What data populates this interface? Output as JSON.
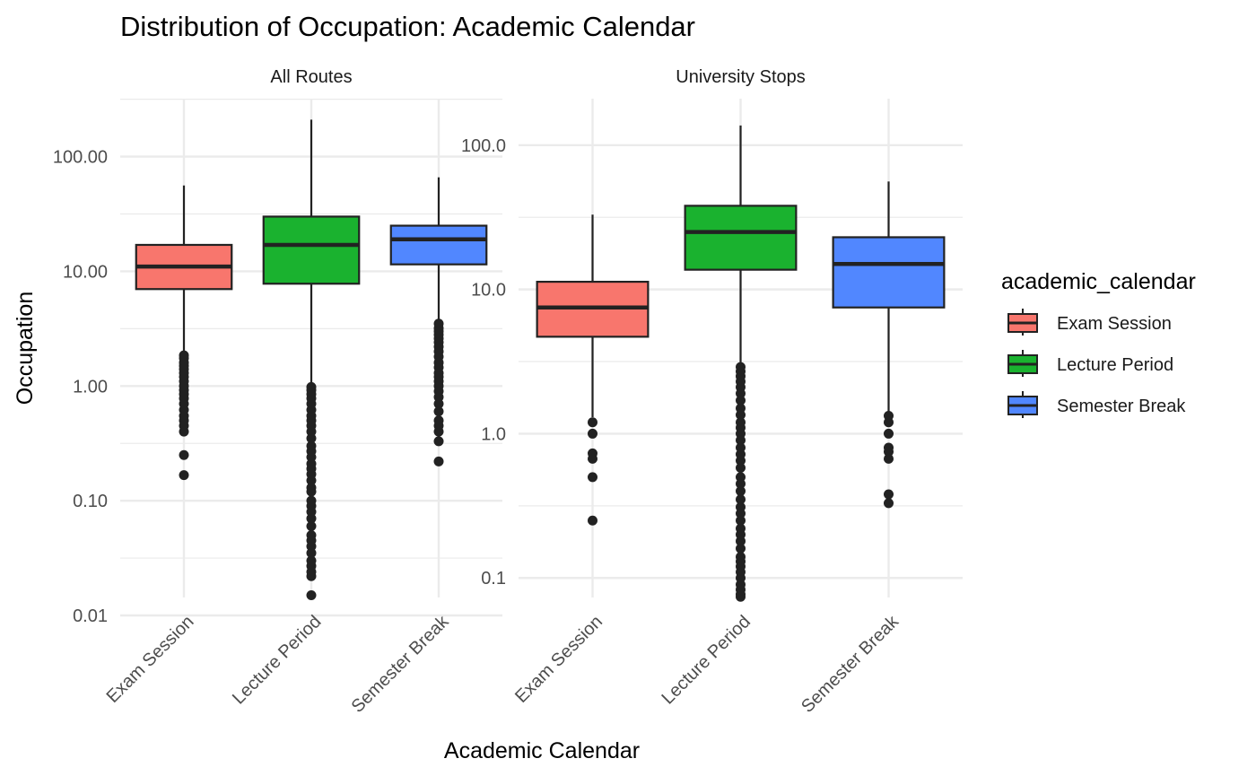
{
  "chart_data": {
    "type": "box",
    "title": "Distribution of Occupation: Academic Calendar",
    "xlabel": "Academic Calendar",
    "ylabel": "Occupation",
    "yscale": "log10",
    "grid": true,
    "categories": [
      "Exam Session",
      "Lecture Period",
      "Semester Break"
    ],
    "legend": {
      "title": "academic_calendar",
      "position": "right",
      "entries": [
        {
          "label": "Exam Session",
          "color": "#F8766D"
        },
        {
          "label": "Lecture Period",
          "color": "#1AB22F"
        },
        {
          "label": "Semester Break",
          "color": "#5187FF"
        }
      ]
    },
    "panels": [
      {
        "strip": "All Routes",
        "ylim": [
          0.01,
          320
        ],
        "ytick_values": [
          0.01,
          0.1,
          1,
          10,
          100
        ],
        "ytick_labels": [
          "0.01",
          "0.10",
          "1.00",
          "10.00",
          "100.00"
        ],
        "boxes": [
          {
            "category": "Exam Session",
            "whisker_low": 2.0,
            "q1": 7.0,
            "median": 11.0,
            "q3": 17.0,
            "whisker_high": 56,
            "outliers": [
              1.85,
              1.75,
              1.6,
              1.5,
              1.4,
              1.3,
              1.2,
              1.1,
              1.0,
              0.92,
              0.85,
              0.78,
              0.7,
              0.62,
              0.55,
              0.5,
              0.45,
              0.4,
              0.25,
              0.167
            ]
          },
          {
            "category": "Lecture Period",
            "whisker_low": 1.0,
            "q1": 7.8,
            "median": 17.0,
            "q3": 30.0,
            "whisker_high": 210,
            "outliers": [
              0.98,
              0.92,
              0.85,
              0.78,
              0.7,
              0.62,
              0.55,
              0.5,
              0.45,
              0.4,
              0.35,
              0.3,
              0.27,
              0.24,
              0.21,
              0.19,
              0.17,
              0.15,
              0.13,
              0.12,
              0.1,
              0.09,
              0.08,
              0.07,
              0.06,
              0.05,
              0.045,
              0.04,
              0.035,
              0.03,
              0.027,
              0.024,
              0.022,
              0.015
            ]
          },
          {
            "category": "Semester Break",
            "whisker_low": 3.6,
            "q1": 11.5,
            "median": 19.0,
            "q3": 25.0,
            "whisker_high": 66,
            "outliers": [
              3.5,
              3.2,
              3.0,
              2.8,
              2.6,
              2.4,
              2.2,
              2.0,
              1.8,
              1.6,
              1.45,
              1.3,
              1.2,
              1.1,
              1.0,
              0.9,
              0.8,
              0.7,
              0.6,
              0.5,
              0.45,
              0.4,
              0.33,
              0.22
            ]
          }
        ]
      },
      {
        "strip": "University Stops",
        "ylim": [
          0.055,
          210
        ],
        "ytick_values": [
          0.1,
          1,
          10,
          100
        ],
        "ytick_labels": [
          "0.1",
          "1.0",
          "10.0",
          "100.0"
        ],
        "boxes": [
          {
            "category": "Exam Session",
            "whisker_low": 1.3,
            "q1": 4.7,
            "median": 7.5,
            "q3": 11.3,
            "whisker_high": 33,
            "outliers": [
              1.2,
              1.0,
              0.73,
              0.67,
              0.5,
              0.25
            ]
          },
          {
            "category": "Lecture Period",
            "whisker_low": 3.0,
            "q1": 13.7,
            "median": 25.0,
            "q3": 38.0,
            "whisker_high": 137,
            "outliers": [
              2.9,
              2.7,
              2.5,
              2.3,
              2.1,
              1.9,
              1.7,
              1.5,
              1.35,
              1.2,
              1.1,
              1.0,
              0.9,
              0.8,
              0.72,
              0.65,
              0.58,
              0.5,
              0.45,
              0.4,
              0.35,
              0.31,
              0.28,
              0.25,
              0.22,
              0.2,
              0.18,
              0.16,
              0.14,
              0.13,
              0.12,
              0.11,
              0.1,
              0.09,
              0.083,
              0.077,
              0.074
            ]
          },
          {
            "category": "Semester Break",
            "whisker_low": 1.4,
            "q1": 7.5,
            "median": 15.0,
            "q3": 23.0,
            "whisker_high": 56,
            "outliers": [
              1.33,
              1.2,
              1.0,
              0.8,
              0.75,
              0.67,
              0.38,
              0.33
            ]
          }
        ]
      }
    ]
  }
}
